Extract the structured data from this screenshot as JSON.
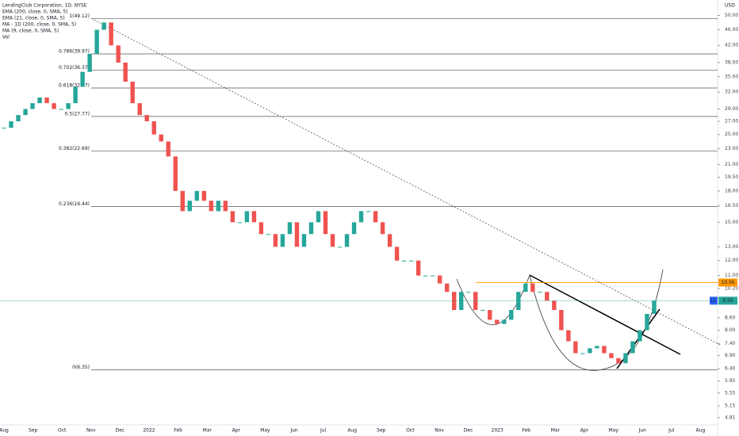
{
  "chart_data": {
    "type": "candlestick",
    "title": "LendingClub Corporation, 1D, NYSE",
    "indicators": [
      "EMA (200, close, 0, SMA, 5)",
      "EMA (21, close, 0, SMA, 5)",
      "MA - 1D (200, close, 0, SMA, 5)",
      "MA (9, close, 0, SMA, 5)",
      "Vol"
    ],
    "currency": "USD",
    "xtick_labels": [
      "Aug",
      "Sep",
      "Oct",
      "Nov",
      "Dec",
      "2022",
      "Feb",
      "Mar",
      "Apr",
      "May",
      "Jun",
      "Jul",
      "Aug",
      "Sep",
      "Oct",
      "Nov",
      "Dec",
      "2023",
      "Feb",
      "Mar",
      "Apr",
      "May",
      "Jun",
      "Jul",
      "Aug"
    ],
    "close": [
      26,
      27,
      28,
      29,
      30,
      31,
      30,
      29,
      29,
      30,
      33,
      36,
      40,
      46,
      48,
      42,
      38,
      34,
      30,
      28,
      27,
      25,
      24,
      22,
      18,
      16,
      17,
      18,
      17,
      16,
      17,
      16,
      15,
      15,
      16,
      15,
      14,
      14,
      13,
      14,
      15,
      13,
      14,
      15,
      16,
      14,
      13,
      13,
      14,
      15,
      16,
      16,
      15,
      14,
      13,
      12,
      12,
      12,
      11,
      11,
      11,
      10.5,
      10,
      9,
      10,
      10,
      9,
      9,
      8.5,
      8.3,
      8.5,
      9,
      10,
      10.5,
      10,
      10,
      9.5,
      9,
      8,
      7.5,
      7,
      7,
      7.2,
      7.3,
      7,
      6.8,
      6.6,
      7,
      7.5,
      8,
      8.8,
      9.5
    ],
    "up_color": "#26a69a",
    "down_color": "#ef5350",
    "log_scale": true,
    "ylim": [
      4.61,
      54.7
    ],
    "yticks": [
      {
        "value": 50,
        "label": "50.00"
      },
      {
        "value": 46,
        "label": "46.00"
      },
      {
        "value": 42,
        "label": "42.00"
      },
      {
        "value": 38,
        "label": "38.00"
      },
      {
        "value": 35,
        "label": "35.00"
      },
      {
        "value": 32,
        "label": "32.00"
      },
      {
        "value": 29,
        "label": "29.00"
      },
      {
        "value": 27,
        "label": "27.00"
      },
      {
        "value": 25,
        "label": "25.00"
      },
      {
        "value": 23,
        "label": "23.00"
      },
      {
        "value": 21,
        "label": "21.00"
      },
      {
        "value": 19.5,
        "label": "19.50"
      },
      {
        "value": 18,
        "label": "18.00"
      },
      {
        "value": 16.5,
        "label": "16.50"
      },
      {
        "value": 15,
        "label": "15.00"
      },
      {
        "value": 13,
        "label": "13.00"
      },
      {
        "value": 12,
        "label": "12.00"
      },
      {
        "value": 11,
        "label": "11.00"
      },
      {
        "value": 10.2,
        "label": "10.20"
      },
      {
        "value": 8.6,
        "label": "8.60"
      },
      {
        "value": 8,
        "label": "8.00"
      },
      {
        "value": 7.4,
        "label": "7.40"
      },
      {
        "value": 6.9,
        "label": "6.90"
      },
      {
        "value": 6.4,
        "label": "6.40"
      },
      {
        "value": 5.95,
        "label": "5.95"
      },
      {
        "value": 5.55,
        "label": "5.55"
      },
      {
        "value": 5.15,
        "label": "5.15"
      },
      {
        "value": 4.81,
        "label": "4.81"
      }
    ],
    "fib_levels": [
      {
        "label": "1(49.12)",
        "value": 49.12
      },
      {
        "label": "0.786(39.97)",
        "value": 39.97
      },
      {
        "label": "0.702(36.37)",
        "value": 36.37
      },
      {
        "label": "0.618(32.77)",
        "value": 32.77
      },
      {
        "label": "0.5(27.77)",
        "value": 27.77
      },
      {
        "label": "0.382(22.69)",
        "value": 22.69
      },
      {
        "label": "0.236(16.44)",
        "value": 16.44
      },
      {
        "label": "0(6.35)",
        "value": 6.35
      }
    ],
    "price_lines": [
      {
        "label": "10.56",
        "value": 10.56,
        "color": "#ff9800"
      },
      {
        "symbol": "LC",
        "label": "9.50",
        "value": 9.5,
        "color": "#26a69a"
      }
    ]
  }
}
